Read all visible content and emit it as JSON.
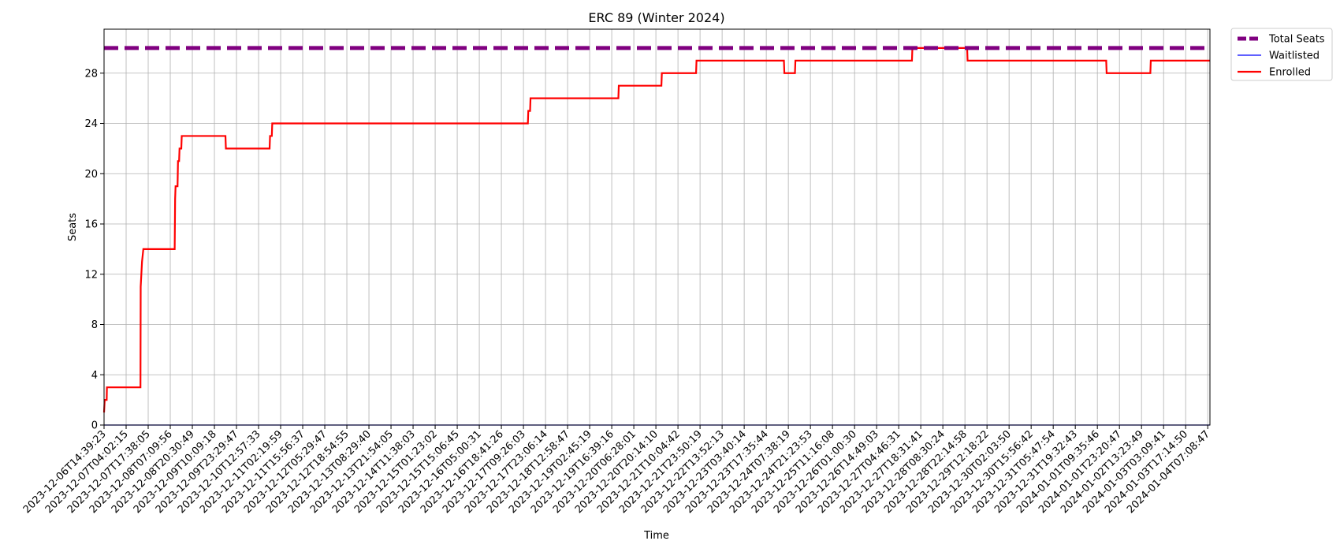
{
  "chart_data": {
    "type": "line",
    "title": "ERC 89 (Winter 2024)",
    "xlabel": "Time",
    "ylabel": "Seats",
    "ylim": [
      0,
      31.5
    ],
    "yticks": [
      0,
      4,
      8,
      12,
      16,
      20,
      24,
      28
    ],
    "grid": true,
    "legend_position": "outside-top-right",
    "x_tick_labels": [
      "2023-12-06T14:39:23",
      "2023-12-07T04:02:15",
      "2023-12-07T17:38:05",
      "2023-12-08T07:09:56",
      "2023-12-08T20:30:49",
      "2023-12-09T10:09:18",
      "2023-12-09T23:29:47",
      "2023-12-10T12:57:33",
      "2023-12-11T02:19:59",
      "2023-12-11T15:56:37",
      "2023-12-12T05:29:47",
      "2023-12-12T18:54:55",
      "2023-12-13T08:29:40",
      "2023-12-13T21:54:05",
      "2023-12-14T11:38:03",
      "2023-12-15T01:23:02",
      "2023-12-15T15:06:45",
      "2023-12-16T05:00:31",
      "2023-12-16T18:41:26",
      "2023-12-17T09:26:03",
      "2023-12-17T23:06:14",
      "2023-12-18T12:58:47",
      "2023-12-19T02:45:19",
      "2023-12-19T16:39:16",
      "2023-12-20T06:28:01",
      "2023-12-20T20:14:10",
      "2023-12-21T10:04:42",
      "2023-12-21T23:50:19",
      "2023-12-22T13:52:13",
      "2023-12-23T03:40:14",
      "2023-12-23T17:35:44",
      "2023-12-24T07:38:19",
      "2023-12-24T21:23:53",
      "2023-12-25T11:16:08",
      "2023-12-26T01:00:30",
      "2023-12-26T14:49:03",
      "2023-12-27T04:46:31",
      "2023-12-27T18:31:41",
      "2023-12-28T08:30:24",
      "2023-12-28T22:14:58",
      "2023-12-29T12:18:22",
      "2023-12-30T02:03:50",
      "2023-12-30T15:56:42",
      "2023-12-31T05:47:54",
      "2023-12-31T19:32:43",
      "2024-01-01T09:35:46",
      "2024-01-01T23:20:47",
      "2024-01-02T13:23:49",
      "2024-01-03T03:09:41",
      "2024-01-03T17:14:50",
      "2024-01-04T07:08:47"
    ],
    "series": [
      {
        "name": "Total Seats",
        "color": "#800080",
        "style": "dashed-thick",
        "points": [
          [
            0,
            30
          ],
          [
            50.1,
            30
          ]
        ]
      },
      {
        "name": "Waitlisted",
        "color": "#0000ff",
        "style": "thin",
        "points": [
          [
            0,
            0
          ],
          [
            50.1,
            0
          ]
        ]
      },
      {
        "name": "Enrolled",
        "color": "#ff0000",
        "style": "solid",
        "points": [
          [
            0,
            1
          ],
          [
            0.03,
            2
          ],
          [
            0.12,
            2
          ],
          [
            0.13,
            3
          ],
          [
            1.65,
            3
          ],
          [
            1.66,
            11
          ],
          [
            1.72,
            13
          ],
          [
            1.78,
            14
          ],
          [
            3.2,
            14
          ],
          [
            3.22,
            18
          ],
          [
            3.24,
            19
          ],
          [
            3.33,
            19
          ],
          [
            3.35,
            21
          ],
          [
            3.4,
            21
          ],
          [
            3.42,
            22
          ],
          [
            3.5,
            22
          ],
          [
            3.52,
            23
          ],
          [
            5.5,
            23
          ],
          [
            5.52,
            22
          ],
          [
            7.5,
            22
          ],
          [
            7.52,
            23
          ],
          [
            7.6,
            23
          ],
          [
            7.62,
            24
          ],
          [
            19.2,
            24
          ],
          [
            19.22,
            25
          ],
          [
            19.3,
            25
          ],
          [
            19.32,
            26
          ],
          [
            23.3,
            26
          ],
          [
            23.32,
            27
          ],
          [
            25.25,
            27
          ],
          [
            25.27,
            28
          ],
          [
            26.82,
            28
          ],
          [
            26.84,
            29
          ],
          [
            30.8,
            29
          ],
          [
            30.82,
            28
          ],
          [
            31.3,
            28
          ],
          [
            31.32,
            29
          ],
          [
            36.6,
            29
          ],
          [
            36.62,
            30
          ],
          [
            39.1,
            30
          ],
          [
            39.12,
            29
          ],
          [
            45.4,
            29
          ],
          [
            45.42,
            28
          ],
          [
            47.4,
            28
          ],
          [
            47.42,
            29
          ],
          [
            50.1,
            29
          ]
        ]
      }
    ]
  }
}
